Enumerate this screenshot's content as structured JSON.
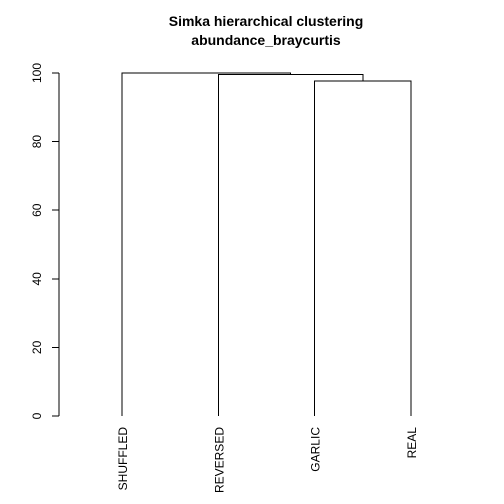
{
  "chart_data": {
    "type": "dendrogram",
    "title": "Simka hierarchical clustering",
    "subtitle": "abundance_braycurtis",
    "ylabel": "",
    "ylim": [
      0,
      100
    ],
    "yticks": [
      "0",
      "20",
      "40",
      "60",
      "80",
      "100"
    ],
    "leaves": [
      "SHUFFLED",
      "REVERSED",
      "GARLIC",
      "REAL"
    ],
    "merges": [
      {
        "left": "GARLIC",
        "right": "REAL",
        "height": 97.6
      },
      {
        "left": "REVERSED",
        "right": "GARLIC+REAL",
        "height": 99.6
      },
      {
        "left": "SHUFFLED",
        "right": "REVERSED+GARLIC+REAL",
        "height": 100
      }
    ]
  }
}
